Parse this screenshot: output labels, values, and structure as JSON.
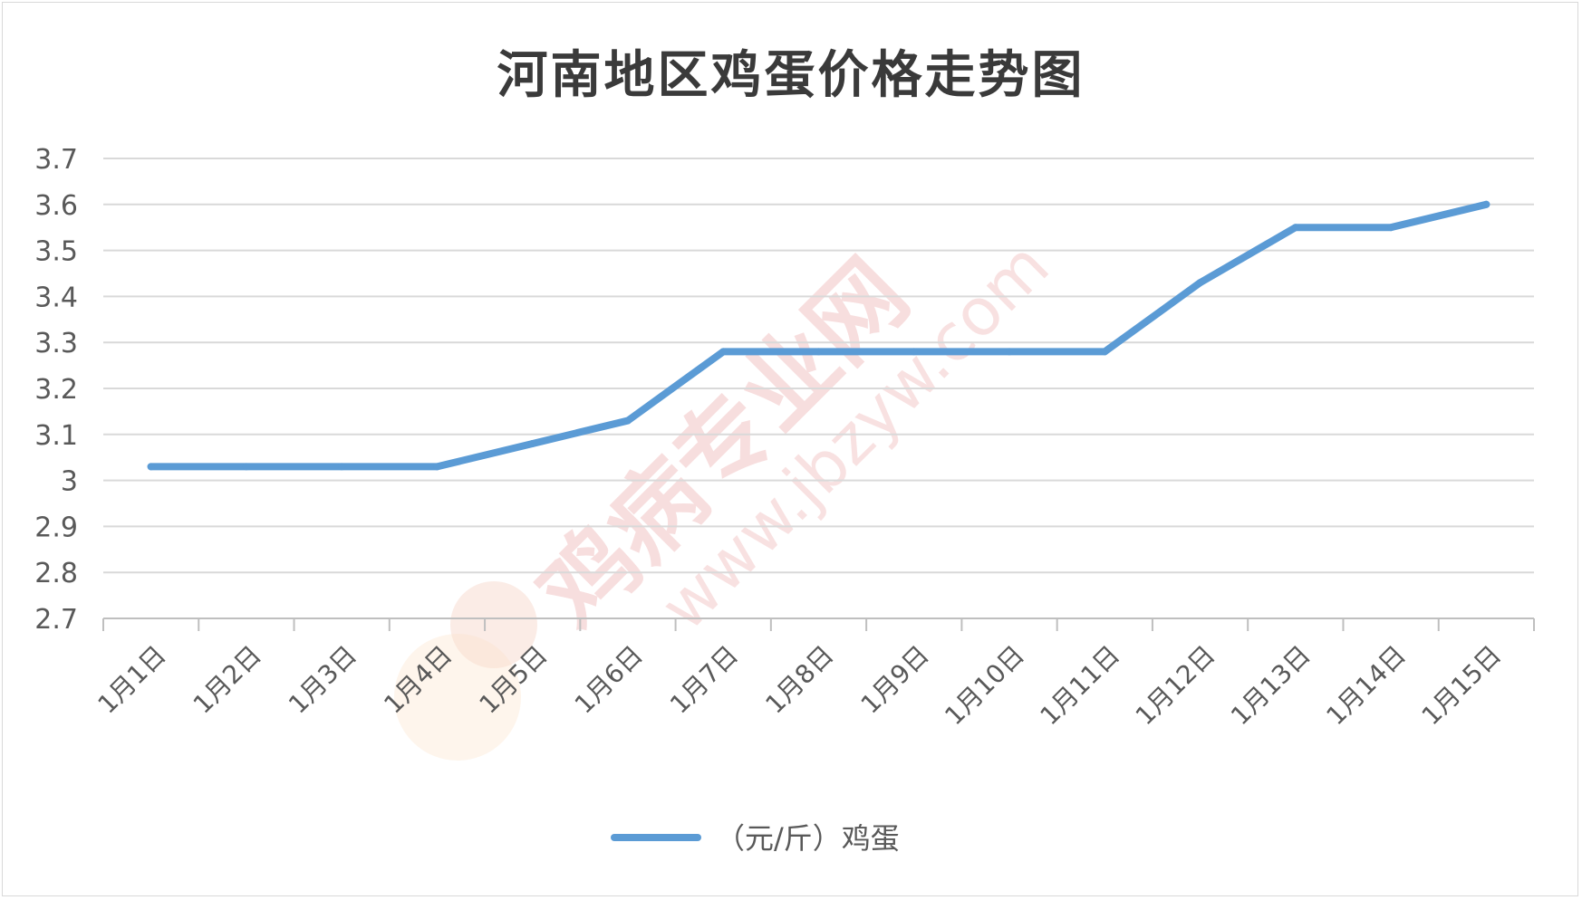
{
  "chart_data": {
    "type": "line",
    "title": "河南地区鸡蛋价格走势图",
    "categories": [
      "1月1日",
      "1月2日",
      "1月3日",
      "1月4日",
      "1月5日",
      "1月6日",
      "1月7日",
      "1月8日",
      "1月9日",
      "1月10日",
      "1月11日",
      "1月12日",
      "1月13日",
      "1月14日",
      "1月15日"
    ],
    "series": [
      {
        "name": "（元/斤）鸡蛋",
        "color": "#5b9bd5",
        "values": [
          3.03,
          3.03,
          3.03,
          3.03,
          3.08,
          3.13,
          3.28,
          3.28,
          3.28,
          3.28,
          3.28,
          3.43,
          3.55,
          3.55,
          3.6
        ]
      }
    ],
    "ylim": [
      2.7,
      3.7
    ],
    "yticks": [
      "2.7",
      "2.8",
      "2.9",
      "3",
      "3.1",
      "3.2",
      "3.3",
      "3.4",
      "3.5",
      "3.6",
      "3.7"
    ],
    "grid": true,
    "legend": "bottom"
  },
  "watermark": {
    "text": "鸡病专业网",
    "url": "www.jbzyw.com",
    "color": "#e06060"
  }
}
